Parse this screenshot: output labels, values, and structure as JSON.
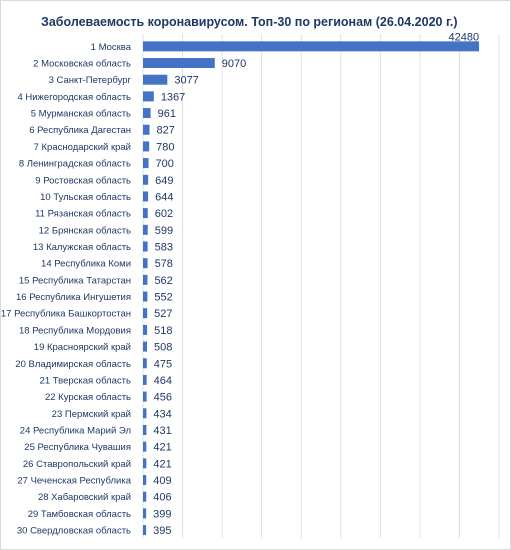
{
  "chart_data": {
    "type": "bar",
    "orientation": "horizontal",
    "title": "Заболеваемость коронавирусом. Топ-30 по регионам (26.04.2020 г.)",
    "xlabel": "",
    "ylabel": "",
    "xlim": [
      0,
      45000
    ],
    "grid": true,
    "legend": "none",
    "bar_color": "#4472c4",
    "text_color": "#1f3864",
    "categories": [
      "1 Москва",
      "2 Московская область",
      "3 Санкт-Петербург",
      "4 Нижегородская область",
      "5 Мурманская область",
      "6 Республика Дагестан",
      "7 Краснодарский край",
      "8 Ленинградская область",
      "9 Ростовская область",
      "10 Тульская область",
      "11 Рязанская область",
      "12 Брянская область",
      "13 Калужская область",
      "14 Республика Коми",
      "15 Республика Татарстан",
      "16 Республика Ингушетия",
      "17 Республика Башкортостан",
      "18 Республика Мордовия",
      "19 Красноярский край",
      "20 Владимирская область",
      "21 Тверская область",
      "22 Курская область",
      "23 Пермский край",
      "24 Республика Марий Эл",
      "25 Республика Чувашия",
      "26 Ставропольский край",
      "27 Чеченская Республика",
      "28 Хабаровский край",
      "29 Тамбовская область",
      "30 Свердловская область"
    ],
    "values": [
      42480,
      9070,
      3077,
      1367,
      961,
      827,
      780,
      700,
      649,
      644,
      602,
      599,
      583,
      578,
      562,
      552,
      527,
      518,
      508,
      475,
      464,
      456,
      434,
      431,
      421,
      421,
      409,
      406,
      399,
      395
    ]
  }
}
